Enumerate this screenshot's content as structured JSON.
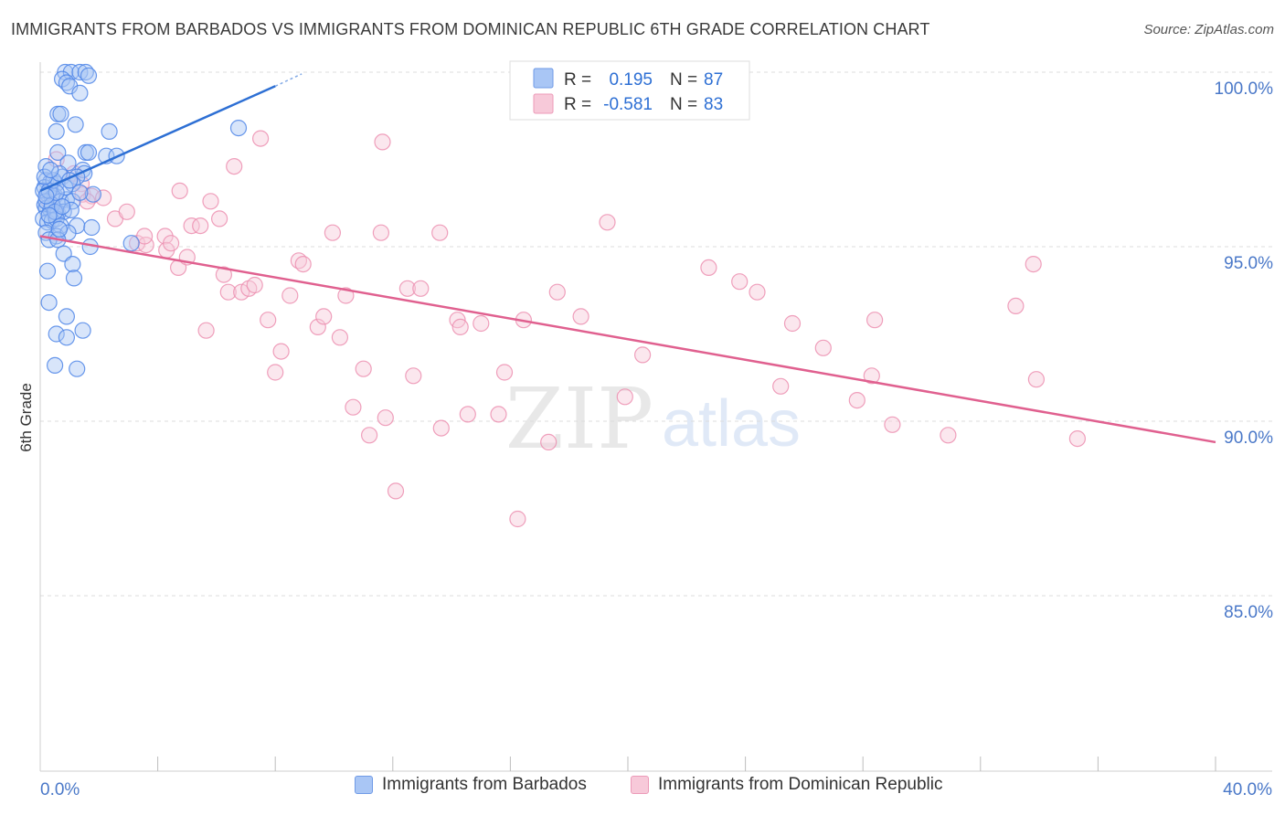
{
  "title": "IMMIGRANTS FROM BARBADOS VS IMMIGRANTS FROM DOMINICAN REPUBLIC 6TH GRADE CORRELATION CHART",
  "source": "Source: ZipAtlas.com",
  "watermark": {
    "zip": "ZIP",
    "atlas": "atlas"
  },
  "colors": {
    "blue_stroke": "#4f86e8",
    "blue_fill": "#a9c6f5",
    "blue_line": "#2d6fd4",
    "pink_stroke": "#ec8fb0",
    "pink_fill": "#f7c9d9",
    "pink_line": "#e0608f",
    "tick_label": "#4a78c8",
    "grid": "#dddddd"
  },
  "legend_box": {
    "rows": [
      {
        "r_label": "R =",
        "r_value": "0.195",
        "n_label": "N =",
        "n_value": "87"
      },
      {
        "r_label": "R =",
        "r_value": "-0.581",
        "n_label": "N =",
        "n_value": "83"
      }
    ]
  },
  "chart_data": {
    "type": "scatter",
    "title": "IMMIGRANTS FROM BARBADOS VS IMMIGRANTS FROM DOMINICAN REPUBLIC 6TH GRADE CORRELATION CHART",
    "xlabel": "",
    "ylabel": "6th Grade",
    "xlim": [
      0,
      40
    ],
    "ylim": [
      80,
      101
    ],
    "x_tick_labels": [
      "0.0%",
      "40.0%"
    ],
    "y_ticks": [
      85,
      90,
      95,
      100
    ],
    "y_tick_labels": [
      "85.0%",
      "90.0%",
      "95.0%",
      "100.0%"
    ],
    "legend_position": "bottom",
    "series": [
      {
        "name": "Immigrants from Barbados",
        "r": 0.195,
        "n": 87,
        "trend": {
          "x": [
            0.0,
            8.0
          ],
          "y": [
            96.6,
            99.6
          ],
          "dash_x": [
            8.0,
            8.9
          ],
          "dash_y": [
            99.6,
            99.95
          ]
        },
        "points": [
          [
            0.85,
            100
          ],
          [
            1.05,
            100
          ],
          [
            1.35,
            100
          ],
          [
            1.55,
            100
          ],
          [
            1.65,
            99.9
          ],
          [
            0.75,
            99.8
          ],
          [
            0.9,
            99.7
          ],
          [
            1.0,
            99.6
          ],
          [
            1.35,
            99.4
          ],
          [
            0.6,
            98.8
          ],
          [
            0.7,
            98.8
          ],
          [
            1.2,
            98.5
          ],
          [
            0.55,
            98.3
          ],
          [
            2.35,
            98.3
          ],
          [
            0.6,
            97.7
          ],
          [
            1.55,
            97.7
          ],
          [
            1.65,
            97.7
          ],
          [
            2.25,
            97.6
          ],
          [
            2.6,
            97.6
          ],
          [
            6.75,
            98.4
          ],
          [
            0.2,
            97.3
          ],
          [
            0.95,
            97.4
          ],
          [
            1.45,
            97.2
          ],
          [
            1.5,
            97.1
          ],
          [
            0.75,
            97.0
          ],
          [
            1.25,
            97.0
          ],
          [
            0.2,
            96.9
          ],
          [
            0.35,
            96.85
          ],
          [
            0.55,
            96.8
          ],
          [
            1.1,
            96.8
          ],
          [
            0.15,
            96.7
          ],
          [
            1.8,
            96.5
          ],
          [
            0.1,
            96.6
          ],
          [
            0.25,
            96.5
          ],
          [
            0.4,
            96.4
          ],
          [
            0.5,
            96.45
          ],
          [
            0.7,
            96.3
          ],
          [
            0.9,
            96.35
          ],
          [
            1.1,
            96.3
          ],
          [
            0.15,
            96.2
          ],
          [
            0.2,
            96.1
          ],
          [
            0.35,
            96.05
          ],
          [
            0.5,
            95.9
          ],
          [
            0.6,
            95.95
          ],
          [
            0.8,
            96.0
          ],
          [
            1.05,
            96.05
          ],
          [
            0.1,
            95.8
          ],
          [
            0.25,
            95.7
          ],
          [
            0.4,
            95.75
          ],
          [
            0.55,
            95.8
          ],
          [
            0.7,
            95.6
          ],
          [
            1.25,
            95.6
          ],
          [
            1.75,
            95.55
          ],
          [
            0.2,
            95.4
          ],
          [
            0.55,
            95.3
          ],
          [
            0.95,
            95.4
          ],
          [
            0.3,
            95.2
          ],
          [
            0.6,
            95.2
          ],
          [
            1.7,
            95.0
          ],
          [
            3.1,
            95.1
          ],
          [
            0.8,
            94.8
          ],
          [
            1.1,
            94.5
          ],
          [
            0.25,
            94.3
          ],
          [
            1.15,
            94.1
          ],
          [
            0.3,
            93.4
          ],
          [
            0.9,
            93.0
          ],
          [
            1.45,
            92.6
          ],
          [
            0.55,
            92.5
          ],
          [
            0.9,
            92.4
          ],
          [
            0.5,
            91.6
          ],
          [
            1.25,
            91.5
          ],
          [
            0.2,
            96.3
          ],
          [
            0.3,
            96.6
          ],
          [
            0.45,
            96.9
          ],
          [
            0.65,
            97.1
          ],
          [
            0.85,
            96.7
          ],
          [
            1.35,
            96.55
          ],
          [
            0.15,
            97.0
          ],
          [
            0.4,
            96.2
          ],
          [
            0.65,
            95.5
          ],
          [
            0.35,
            97.2
          ],
          [
            0.5,
            96.0
          ],
          [
            1.0,
            96.9
          ],
          [
            0.3,
            95.9
          ],
          [
            0.55,
            96.55
          ],
          [
            0.75,
            96.15
          ],
          [
            0.2,
            96.45
          ]
        ]
      },
      {
        "name": "Immigrants from Dominican Republic",
        "r": -0.581,
        "n": 83,
        "trend": {
          "x": [
            0.0,
            40.0
          ],
          "y": [
            95.3,
            89.4
          ]
        },
        "points": [
          [
            0.55,
            97.5
          ],
          [
            1.15,
            97.1
          ],
          [
            1.4,
            96.8
          ],
          [
            1.45,
            96.5
          ],
          [
            1.75,
            96.45
          ],
          [
            0.3,
            96.3
          ],
          [
            1.6,
            96.3
          ],
          [
            2.15,
            96.4
          ],
          [
            2.55,
            95.8
          ],
          [
            2.95,
            96.0
          ],
          [
            3.3,
            95.1
          ],
          [
            3.6,
            95.05
          ],
          [
            3.55,
            95.3
          ],
          [
            4.25,
            95.3
          ],
          [
            4.3,
            94.9
          ],
          [
            4.45,
            95.1
          ],
          [
            4.7,
            94.4
          ],
          [
            4.75,
            96.6
          ],
          [
            5.0,
            94.7
          ],
          [
            5.15,
            95.6
          ],
          [
            5.45,
            95.6
          ],
          [
            5.65,
            92.6
          ],
          [
            5.8,
            96.3
          ],
          [
            6.1,
            95.8
          ],
          [
            6.25,
            94.2
          ],
          [
            6.4,
            93.7
          ],
          [
            6.6,
            97.3
          ],
          [
            6.85,
            93.7
          ],
          [
            7.1,
            93.8
          ],
          [
            7.3,
            93.9
          ],
          [
            7.5,
            98.1
          ],
          [
            7.75,
            92.9
          ],
          [
            8.0,
            91.4
          ],
          [
            8.2,
            92.0
          ],
          [
            8.5,
            93.6
          ],
          [
            8.8,
            94.6
          ],
          [
            8.95,
            94.5
          ],
          [
            9.45,
            92.7
          ],
          [
            9.65,
            93.0
          ],
          [
            9.95,
            95.4
          ],
          [
            10.2,
            92.4
          ],
          [
            10.4,
            93.6
          ],
          [
            10.65,
            90.4
          ],
          [
            11.0,
            91.5
          ],
          [
            11.2,
            89.6
          ],
          [
            11.6,
            95.4
          ],
          [
            11.65,
            98.0
          ],
          [
            11.75,
            90.1
          ],
          [
            12.1,
            88.0
          ],
          [
            12.5,
            93.8
          ],
          [
            12.7,
            91.3
          ],
          [
            12.95,
            93.8
          ],
          [
            13.6,
            95.4
          ],
          [
            13.65,
            89.8
          ],
          [
            14.2,
            92.9
          ],
          [
            14.3,
            92.7
          ],
          [
            14.55,
            90.2
          ],
          [
            15.0,
            92.8
          ],
          [
            15.6,
            90.2
          ],
          [
            15.8,
            91.4
          ],
          [
            16.25,
            87.2
          ],
          [
            16.45,
            92.9
          ],
          [
            17.3,
            89.4
          ],
          [
            17.6,
            93.7
          ],
          [
            18.4,
            93.0
          ],
          [
            19.3,
            95.7
          ],
          [
            19.9,
            90.7
          ],
          [
            20.5,
            91.9
          ],
          [
            22.75,
            94.4
          ],
          [
            23.8,
            94.0
          ],
          [
            24.4,
            93.7
          ],
          [
            25.2,
            91.0
          ],
          [
            25.6,
            92.8
          ],
          [
            26.65,
            92.1
          ],
          [
            27.8,
            90.6
          ],
          [
            28.3,
            91.3
          ],
          [
            28.4,
            92.9
          ],
          [
            29.0,
            89.9
          ],
          [
            30.9,
            89.6
          ],
          [
            33.2,
            93.3
          ],
          [
            33.8,
            94.5
          ],
          [
            33.9,
            91.2
          ],
          [
            35.3,
            89.5
          ]
        ]
      }
    ]
  },
  "bottom_legend": [
    {
      "label": "Immigrants from Barbados"
    },
    {
      "label": "Immigrants from Dominican Republic"
    }
  ]
}
